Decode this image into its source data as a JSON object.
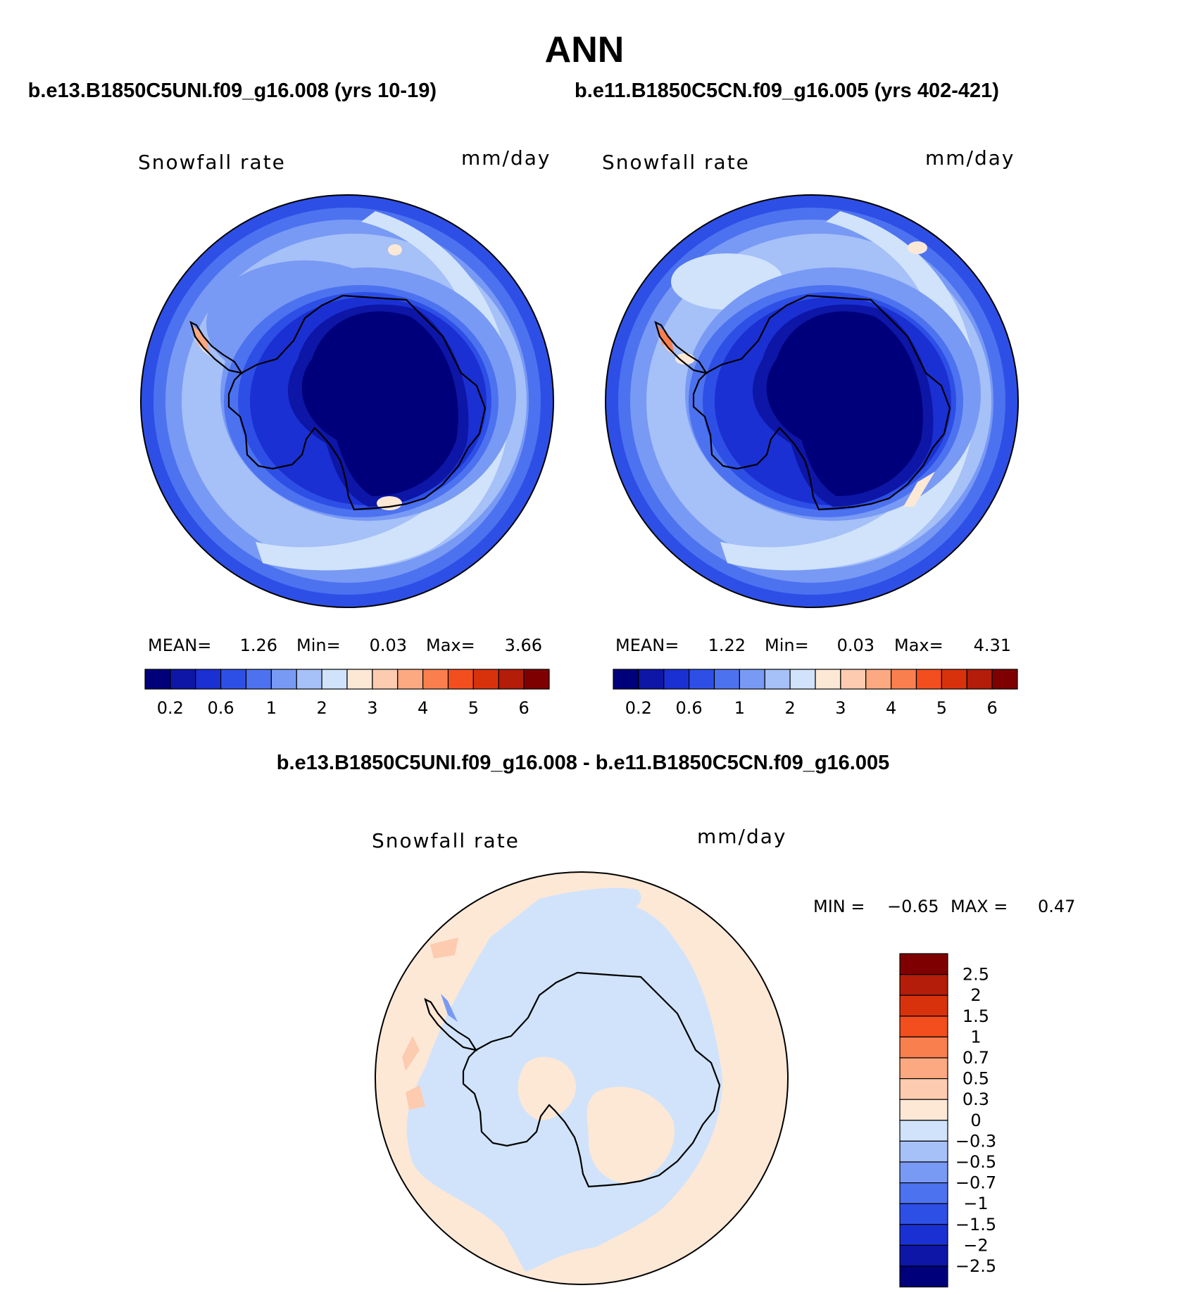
{
  "title": "ANN",
  "header": {
    "left_case": "b.e13.B1850C5UNI.f09_g16.008 (yrs 10-19)",
    "right_case": "b.e11.B1850C5CN.f09_g16.005 (yrs 402-421)",
    "diff_title": "b.e13.B1850C5UNI.f09_g16.008 - b.e11.B1850C5CN.f09_g16.005"
  },
  "panels": [
    {
      "variable": "Snowfall rate",
      "units": "mm/day",
      "stats": {
        "mean_label": "MEAN=",
        "mean": "1.26",
        "min_label": "Min=",
        "min": "0.03",
        "max_label": "Max=",
        "max": "3.66"
      }
    },
    {
      "variable": "Snowfall rate",
      "units": "mm/day",
      "stats": {
        "mean_label": "MEAN=",
        "mean": "1.22",
        "min_label": "Min=",
        "min": "0.03",
        "max_label": "Max=",
        "max": "4.31"
      }
    }
  ],
  "diff_panel": {
    "variable": "Snowfall rate",
    "units": "mm/day",
    "min_label": "MIN =",
    "min": "−0.65",
    "max_label": "MAX =",
    "max": "0.47"
  },
  "colorbar_top": {
    "colors": [
      "#00007a",
      "#0d16a6",
      "#1a30d2",
      "#2e4fe6",
      "#4d72f0",
      "#789af4",
      "#a6c0f8",
      "#d0e3fb",
      "#fde8d6",
      "#fdcbb0",
      "#fca880",
      "#fa7f4e",
      "#f34e1e",
      "#d8320c",
      "#b31d09",
      "#7f0000"
    ],
    "tick_labels": [
      "0.2",
      "0.6",
      "1",
      "2",
      "3",
      "4",
      "5",
      "6"
    ]
  },
  "colorbar_diff": {
    "colors": [
      "#7f0000",
      "#b31d09",
      "#d8320c",
      "#f34e1e",
      "#fa7f4e",
      "#fca880",
      "#fdcbb0",
      "#fde8d6",
      "#d0e3fb",
      "#a6c0f8",
      "#789af4",
      "#4d72f0",
      "#2e4fe6",
      "#1a30d2",
      "#0d16a6",
      "#00007a"
    ],
    "tick_labels": [
      "2.5",
      "2",
      "1.5",
      "1",
      "0.7",
      "0.5",
      "0.3",
      "0",
      "−0.3",
      "−0.5",
      "−0.7",
      "−1",
      "−1.5",
      "−2",
      "−2.5"
    ]
  }
}
